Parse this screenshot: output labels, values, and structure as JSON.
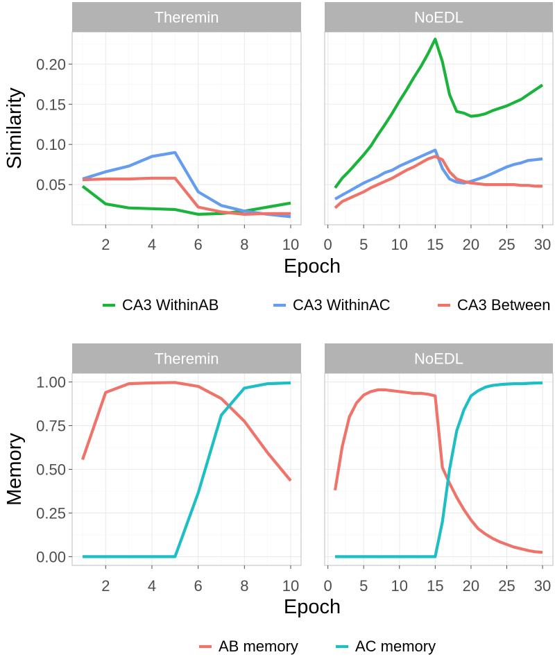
{
  "colors": {
    "within_ab": "#1cb33c",
    "within_ac": "#649cf0",
    "between": "#ef7369",
    "ab_memory": "#ef7369",
    "ac_memory": "#1ebfc4",
    "strip": "#b3b3b3"
  },
  "chart_data": [
    {
      "type": "line",
      "ylabel": "Similarity",
      "xlabel": "Epoch",
      "ylim": [
        0,
        0.24
      ],
      "yticks": [
        0.05,
        0.1,
        0.15,
        0.2
      ],
      "ytick_labels": [
        "0.05",
        "0.10",
        "0.15",
        "0.20"
      ],
      "legend_labels": [
        "CA3 WithinAB",
        "CA3 WithinAC",
        "CA3 Between"
      ],
      "panels": [
        {
          "facet": "Theremin",
          "xlim": [
            0.55,
            10.45
          ],
          "xticks": [
            2,
            4,
            6,
            8,
            10
          ],
          "xtick_labels": [
            "2",
            "4",
            "6",
            "8",
            "10"
          ],
          "x": [
            1,
            2,
            3,
            4,
            5,
            6,
            7,
            8,
            9,
            10
          ],
          "series": [
            {
              "name": "CA3 WithinAB",
              "values": [
                0.048,
                0.026,
                0.021,
                0.02,
                0.019,
                0.013,
                0.014,
                0.017,
                0.022,
                0.027
              ]
            },
            {
              "name": "CA3 WithinAC",
              "values": [
                0.057,
                0.066,
                0.073,
                0.085,
                0.09,
                0.041,
                0.024,
                0.017,
                0.013,
                0.01
              ]
            },
            {
              "name": "CA3 Between",
              "values": [
                0.056,
                0.057,
                0.057,
                0.058,
                0.058,
                0.022,
                0.016,
                0.013,
                0.014,
                0.014
              ]
            }
          ]
        },
        {
          "facet": "NoEDL",
          "xlim": [
            -0.45,
            31.45
          ],
          "xticks": [
            0,
            5,
            10,
            15,
            20,
            25,
            30
          ],
          "xtick_labels": [
            "0",
            "5",
            "10",
            "15",
            "20",
            "25",
            "30"
          ],
          "x": [
            1,
            2,
            3,
            4,
            5,
            6,
            7,
            8,
            9,
            10,
            11,
            12,
            13,
            14,
            15,
            16,
            17,
            18,
            19,
            20,
            21,
            22,
            23,
            24,
            25,
            26,
            27,
            28,
            29,
            30
          ],
          "series": [
            {
              "name": "CA3 WithinAB",
              "values": [
                0.046,
                0.058,
                0.067,
                0.077,
                0.087,
                0.098,
                0.112,
                0.125,
                0.139,
                0.154,
                0.168,
                0.183,
                0.197,
                0.213,
                0.231,
                0.203,
                0.162,
                0.141,
                0.139,
                0.135,
                0.136,
                0.138,
                0.142,
                0.145,
                0.148,
                0.152,
                0.156,
                0.162,
                0.168,
                0.174
              ]
            },
            {
              "name": "CA3 WithinAC",
              "values": [
                0.032,
                0.037,
                0.042,
                0.047,
                0.052,
                0.056,
                0.06,
                0.065,
                0.068,
                0.073,
                0.077,
                0.081,
                0.085,
                0.089,
                0.093,
                0.07,
                0.057,
                0.053,
                0.052,
                0.054,
                0.057,
                0.06,
                0.064,
                0.068,
                0.072,
                0.075,
                0.077,
                0.08,
                0.081,
                0.082
              ]
            },
            {
              "name": "CA3 Between",
              "values": [
                0.021,
                0.029,
                0.033,
                0.037,
                0.041,
                0.046,
                0.05,
                0.054,
                0.058,
                0.063,
                0.068,
                0.072,
                0.077,
                0.082,
                0.085,
                0.081,
                0.066,
                0.057,
                0.054,
                0.052,
                0.051,
                0.05,
                0.05,
                0.05,
                0.05,
                0.05,
                0.049,
                0.049,
                0.048,
                0.048
              ]
            }
          ]
        }
      ]
    },
    {
      "type": "line",
      "ylabel": "Memory",
      "xlabel": "Epoch",
      "ylim": [
        -0.05,
        1.05
      ],
      "yticks": [
        0,
        0.25,
        0.5,
        0.75,
        1.0
      ],
      "ytick_labels": [
        "0.00",
        "0.25",
        "0.50",
        "0.75",
        "1.00"
      ],
      "legend_labels": [
        "AB memory",
        "AC memory"
      ],
      "panels": [
        {
          "facet": "Theremin",
          "xlim": [
            0.55,
            10.45
          ],
          "xticks": [
            2,
            4,
            6,
            8,
            10
          ],
          "xtick_labels": [
            "2",
            "4",
            "6",
            "8",
            "10"
          ],
          "x": [
            1,
            2,
            3,
            4,
            5,
            6,
            7,
            8,
            9,
            10
          ],
          "series": [
            {
              "name": "AB memory",
              "values": [
                0.555,
                0.94,
                0.99,
                0.995,
                0.997,
                0.975,
                0.905,
                0.775,
                0.595,
                0.435
              ]
            },
            {
              "name": "AC memory",
              "values": [
                0.0,
                0.0,
                0.0,
                0.0,
                0.0,
                0.365,
                0.81,
                0.965,
                0.99,
                0.995
              ]
            }
          ]
        },
        {
          "facet": "NoEDL",
          "xlim": [
            -0.45,
            31.45
          ],
          "xticks": [
            0,
            5,
            10,
            15,
            20,
            25,
            30
          ],
          "xtick_labels": [
            "0",
            "5",
            "10",
            "15",
            "20",
            "25",
            "30"
          ],
          "x": [
            1,
            2,
            3,
            4,
            5,
            6,
            7,
            8,
            9,
            10,
            11,
            12,
            13,
            14,
            15,
            16,
            17,
            18,
            19,
            20,
            21,
            22,
            23,
            24,
            25,
            26,
            27,
            28,
            29,
            30
          ],
          "series": [
            {
              "name": "AB memory",
              "values": [
                0.38,
                0.63,
                0.8,
                0.88,
                0.925,
                0.945,
                0.955,
                0.955,
                0.95,
                0.945,
                0.94,
                0.935,
                0.935,
                0.93,
                0.92,
                0.51,
                0.42,
                0.34,
                0.27,
                0.21,
                0.16,
                0.13,
                0.105,
                0.085,
                0.07,
                0.055,
                0.045,
                0.035,
                0.028,
                0.025
              ]
            },
            {
              "name": "AC memory",
              "values": [
                0,
                0,
                0,
                0,
                0,
                0,
                0,
                0,
                0,
                0,
                0,
                0,
                0,
                0,
                0,
                0.2,
                0.5,
                0.72,
                0.84,
                0.92,
                0.95,
                0.97,
                0.98,
                0.985,
                0.988,
                0.99,
                0.99,
                0.992,
                0.994,
                0.995
              ]
            }
          ]
        }
      ]
    }
  ]
}
